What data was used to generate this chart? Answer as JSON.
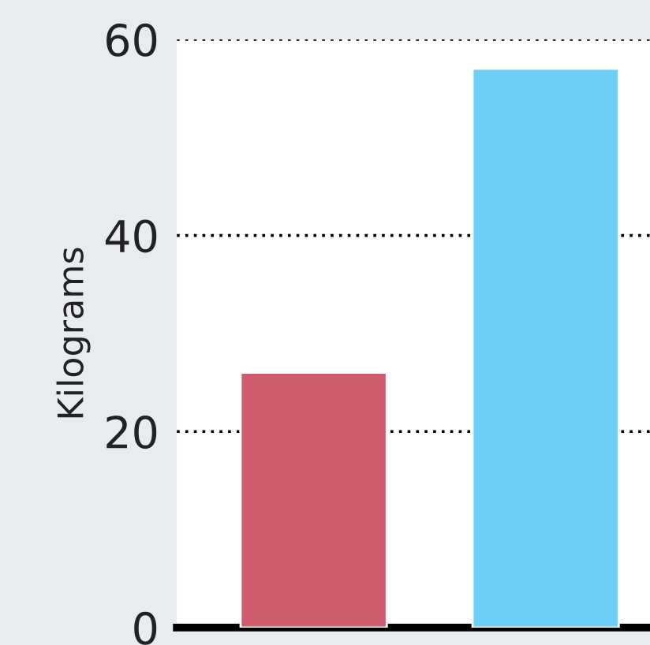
{
  "chart_data": {
    "type": "bar",
    "ylabel": "Kilograms",
    "categories": [
      null,
      null
    ],
    "values": [
      26,
      57
    ],
    "colors": [
      "#cf5c6d",
      "#6dcff6"
    ],
    "ylim": [
      0,
      60
    ],
    "yticks": [
      0,
      20,
      40,
      60
    ],
    "grid": "y"
  }
}
